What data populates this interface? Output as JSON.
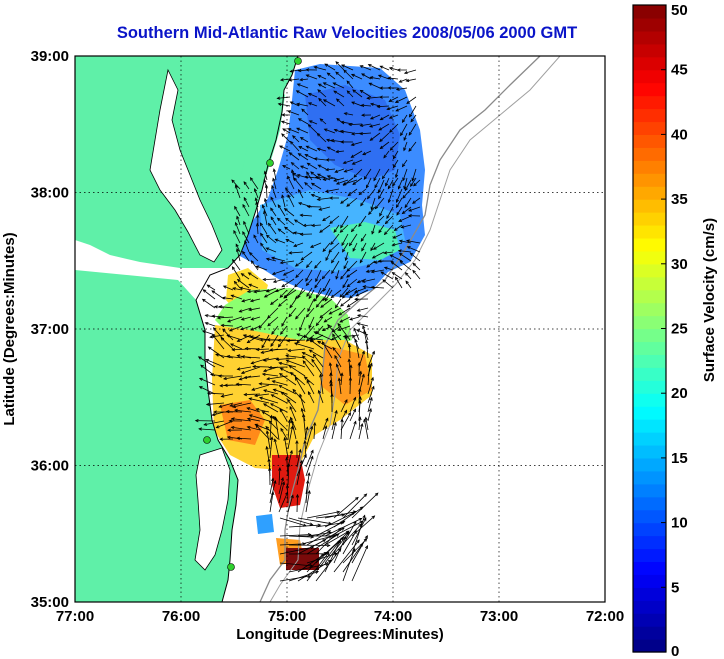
{
  "title": "Southern Mid-Atlantic Raw Velocities 2008/05/06 2000 GMT",
  "map": {
    "xlabel": "Longitude (Degrees:Minutes)",
    "ylabel": "Latitude (Degrees:Minutes)",
    "x_ticks": [
      "77:00",
      "76:00",
      "75:00",
      "74:00",
      "73:00",
      "72:00"
    ],
    "y_ticks": [
      "39:00",
      "38:00",
      "37:00",
      "36:00",
      "35:00"
    ],
    "lon_range": [
      -77,
      -72
    ],
    "lat_range": [
      35,
      39
    ],
    "land_color": "#5ff0a8",
    "vector_color": "#000000",
    "station_color": "#2fd02f"
  },
  "colorbar": {
    "label": "Surface Velocity (cm/s)",
    "ticks": [
      "0",
      "5",
      "10",
      "15",
      "20",
      "25",
      "30",
      "35",
      "40",
      "45",
      "50"
    ],
    "range": [
      0,
      50
    ],
    "steps": 50
  },
  "chart_data": {
    "type": "heatmap",
    "title": "Southern Mid-Atlantic Raw Velocities 2008/05/06 2000 GMT",
    "xlabel": "Longitude (Degrees:Minutes)",
    "ylabel": "Latitude (Degrees:Minutes)",
    "xlim": [
      -77,
      -72
    ],
    "ylim": [
      35,
      39
    ],
    "colorbar_range": [
      0,
      50
    ],
    "colorbar_label": "Surface Velocity (cm/s)",
    "grid": true,
    "region_speeds": [
      {
        "lon": -74.6,
        "lat": 38.4,
        "speed": 8
      },
      {
        "lon": -74.5,
        "lat": 37.7,
        "speed": 10
      },
      {
        "lon": -75.3,
        "lat": 37.1,
        "speed": 25
      },
      {
        "lon": -74.5,
        "lat": 36.6,
        "speed": 30
      },
      {
        "lon": -75.0,
        "lat": 36.2,
        "speed": 25
      },
      {
        "lon": -74.9,
        "lat": 35.8,
        "speed": 45
      },
      {
        "lon": -74.8,
        "lat": 35.35,
        "speed": 50
      },
      {
        "lon": -75.2,
        "lat": 35.6,
        "speed": 8
      }
    ]
  }
}
